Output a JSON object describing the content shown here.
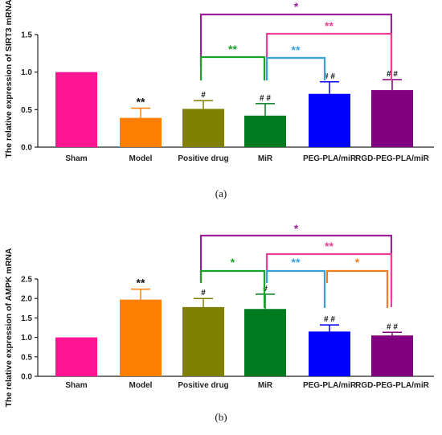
{
  "chart_data": [
    {
      "type": "bar",
      "ylabel": "The relative expression of SIRT3 mRNA",
      "caption": "(a)",
      "categories": [
        "Sham",
        "Model",
        "Positive drug",
        "MiR",
        "PEG-PLA/miR",
        "RGD-PEG-PLA/miR"
      ],
      "values": [
        1.0,
        0.39,
        0.51,
        0.42,
        0.71,
        0.76
      ],
      "errors": [
        0,
        0.13,
        0.11,
        0.16,
        0.16,
        0.14
      ],
      "colors": [
        "#ff1493",
        "#ff7f00",
        "#808000",
        "#007a1f",
        "#0000ff",
        "#800080"
      ],
      "ylim": [
        0,
        1.5
      ],
      "yticks": [
        "0.0",
        "0.5",
        "1.0",
        "1.5"
      ],
      "bar_marks": [
        "",
        "**",
        "#",
        "# #",
        "# #",
        "# #"
      ],
      "brackets": [
        {
          "from": 2,
          "to": 5,
          "label": "*",
          "color": "#9c1f9c"
        },
        {
          "from": 3,
          "to": 5,
          "label": "**",
          "color": "#ec3f96"
        },
        {
          "from": 2,
          "to": 3,
          "label": "**",
          "color": "#1aa32a"
        },
        {
          "from": 3,
          "to": 4,
          "label": "**",
          "color": "#3aa0dc"
        }
      ]
    },
    {
      "type": "bar",
      "ylabel": "The relative expression of AMPK mRNA",
      "caption": "(b)",
      "categories": [
        "Sham",
        "Model",
        "Positive drug",
        "MiR",
        "PEG-PLA/miR",
        "RGD-PEG-PLA/miR"
      ],
      "values": [
        1.0,
        1.97,
        1.78,
        1.73,
        1.15,
        1.05
      ],
      "errors": [
        0,
        0.27,
        0.22,
        0.38,
        0.17,
        0.08
      ],
      "colors": [
        "#ff1493",
        "#ff7f00",
        "#808000",
        "#007a1f",
        "#0000ff",
        "#800080"
      ],
      "ylim": [
        0,
        2.5
      ],
      "yticks": [
        "0.0",
        "0.5",
        "1.0",
        "1.5",
        "2.0",
        "2.5"
      ],
      "bar_marks": [
        "",
        "**",
        "#",
        "#",
        "# #",
        "# #"
      ],
      "brackets": [
        {
          "from": 2,
          "to": 5,
          "label": "*",
          "color": "#9c1f9c"
        },
        {
          "from": 3,
          "to": 5,
          "label": "**",
          "color": "#ec3f96"
        },
        {
          "from": 2,
          "to": 3,
          "label": "*",
          "color": "#1aa32a"
        },
        {
          "from": 3,
          "to": 4,
          "label": "**",
          "color": "#3aa0dc"
        },
        {
          "from": 4,
          "to": 5,
          "label": "*",
          "color": "#f07d1e"
        }
      ]
    }
  ]
}
